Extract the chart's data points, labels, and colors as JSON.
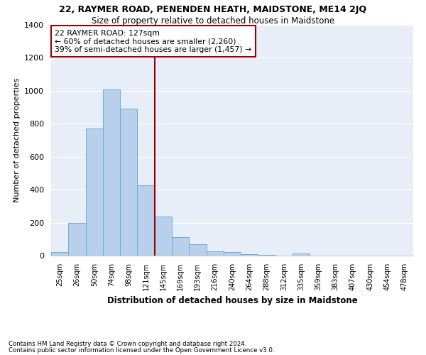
{
  "title1": "22, RAYMER ROAD, PENENDEN HEATH, MAIDSTONE, ME14 2JQ",
  "title2": "Size of property relative to detached houses in Maidstone",
  "xlabel": "Distribution of detached houses by size in Maidstone",
  "ylabel": "Number of detached properties",
  "footnote1": "Contains HM Land Registry data © Crown copyright and database right 2024.",
  "footnote2": "Contains public sector information licensed under the Open Government Licence v3.0.",
  "bar_labels": [
    "25sqm",
    "26sqm",
    "50sqm",
    "74sqm",
    "98sqm",
    "121sqm",
    "145sqm",
    "169sqm",
    "193sqm",
    "216sqm",
    "240sqm",
    "264sqm",
    "288sqm",
    "312sqm",
    "335sqm",
    "359sqm",
    "383sqm",
    "407sqm",
    "430sqm",
    "454sqm",
    "478sqm"
  ],
  "bar_values": [
    20,
    200,
    770,
    1010,
    890,
    425,
    235,
    110,
    68,
    28,
    20,
    10,
    5,
    0,
    15,
    0,
    0,
    0,
    0,
    0,
    0
  ],
  "bar_color": "#b8d0ec",
  "bar_edge_color": "#6aaed6",
  "vline_color": "#990000",
  "annotation_title": "22 RAYMER ROAD: 127sqm",
  "annotation_line1": "← 60% of detached houses are smaller (2,260)",
  "annotation_line2": "39% of semi-detached houses are larger (1,457) →",
  "annotation_box_color": "#990000",
  "ylim": [
    0,
    1400
  ],
  "yticks": [
    0,
    200,
    400,
    600,
    800,
    1000,
    1200,
    1400
  ],
  "background_color": "#e8eef8",
  "grid_color": "#ffffff"
}
